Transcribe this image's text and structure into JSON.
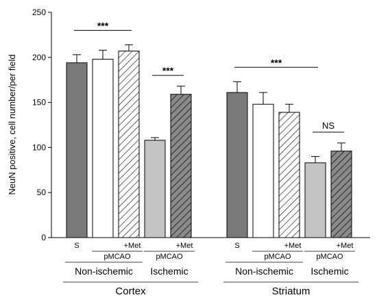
{
  "chart_data": {
    "type": "bar",
    "title": "",
    "ylabel": "NeuN positive, cell number/per field",
    "ylim": [
      0,
      250
    ],
    "yticks": [
      0,
      50,
      100,
      150,
      200,
      250
    ],
    "grid": false,
    "groups": [
      {
        "name": "Cortex",
        "subgroups": [
          {
            "name": "Non-ischemic",
            "pmcao_label": "pMCAO"
          },
          {
            "name": "Ischemic",
            "pmcao_label": "pMCAO"
          }
        ],
        "bars": [
          {
            "label": "S",
            "value": 194,
            "error": 9,
            "fill": "dark"
          },
          {
            "label": "",
            "value": 198,
            "error": 10,
            "fill": "white"
          },
          {
            "label": "+Met",
            "value": 207,
            "error": 7,
            "fill": "hatch-white"
          },
          {
            "label": "",
            "value": 108,
            "error": 3,
            "fill": "light"
          },
          {
            "label": "+Met",
            "value": 159,
            "error": 9,
            "fill": "hatch-dark"
          }
        ]
      },
      {
        "name": "Striatum",
        "subgroups": [
          {
            "name": "Non-ischemic",
            "pmcao_label": "pMCAO"
          },
          {
            "name": "Ischemic",
            "pmcao_label": "pMCAO"
          }
        ],
        "bars": [
          {
            "label": "S",
            "value": 161,
            "error": 12,
            "fill": "dark"
          },
          {
            "label": "",
            "value": 148,
            "error": 13,
            "fill": "white"
          },
          {
            "label": "+Met",
            "value": 139,
            "error": 9,
            "fill": "hatch-white"
          },
          {
            "label": "",
            "value": 83,
            "error": 7,
            "fill": "light"
          },
          {
            "label": "+Met",
            "value": 96,
            "error": 9,
            "fill": "hatch-dark"
          }
        ]
      }
    ],
    "significance": [
      {
        "group": 0,
        "from": 0,
        "to": 2,
        "y": 230,
        "text": "***"
      },
      {
        "group": 0,
        "from": 3,
        "to": 4,
        "y": 180,
        "text": "***"
      },
      {
        "group": 1,
        "from": 0,
        "to": 3,
        "y": 189,
        "text": "***"
      },
      {
        "group": 1,
        "from": 3,
        "to": 4,
        "y": 117,
        "text": "NS"
      }
    ],
    "colors": {
      "dark": "#7a7a7a",
      "light": "#c4c4c4",
      "white": "#ffffff",
      "hatch_dark_bg": "#8a8a8a",
      "stroke": "#000000"
    }
  }
}
